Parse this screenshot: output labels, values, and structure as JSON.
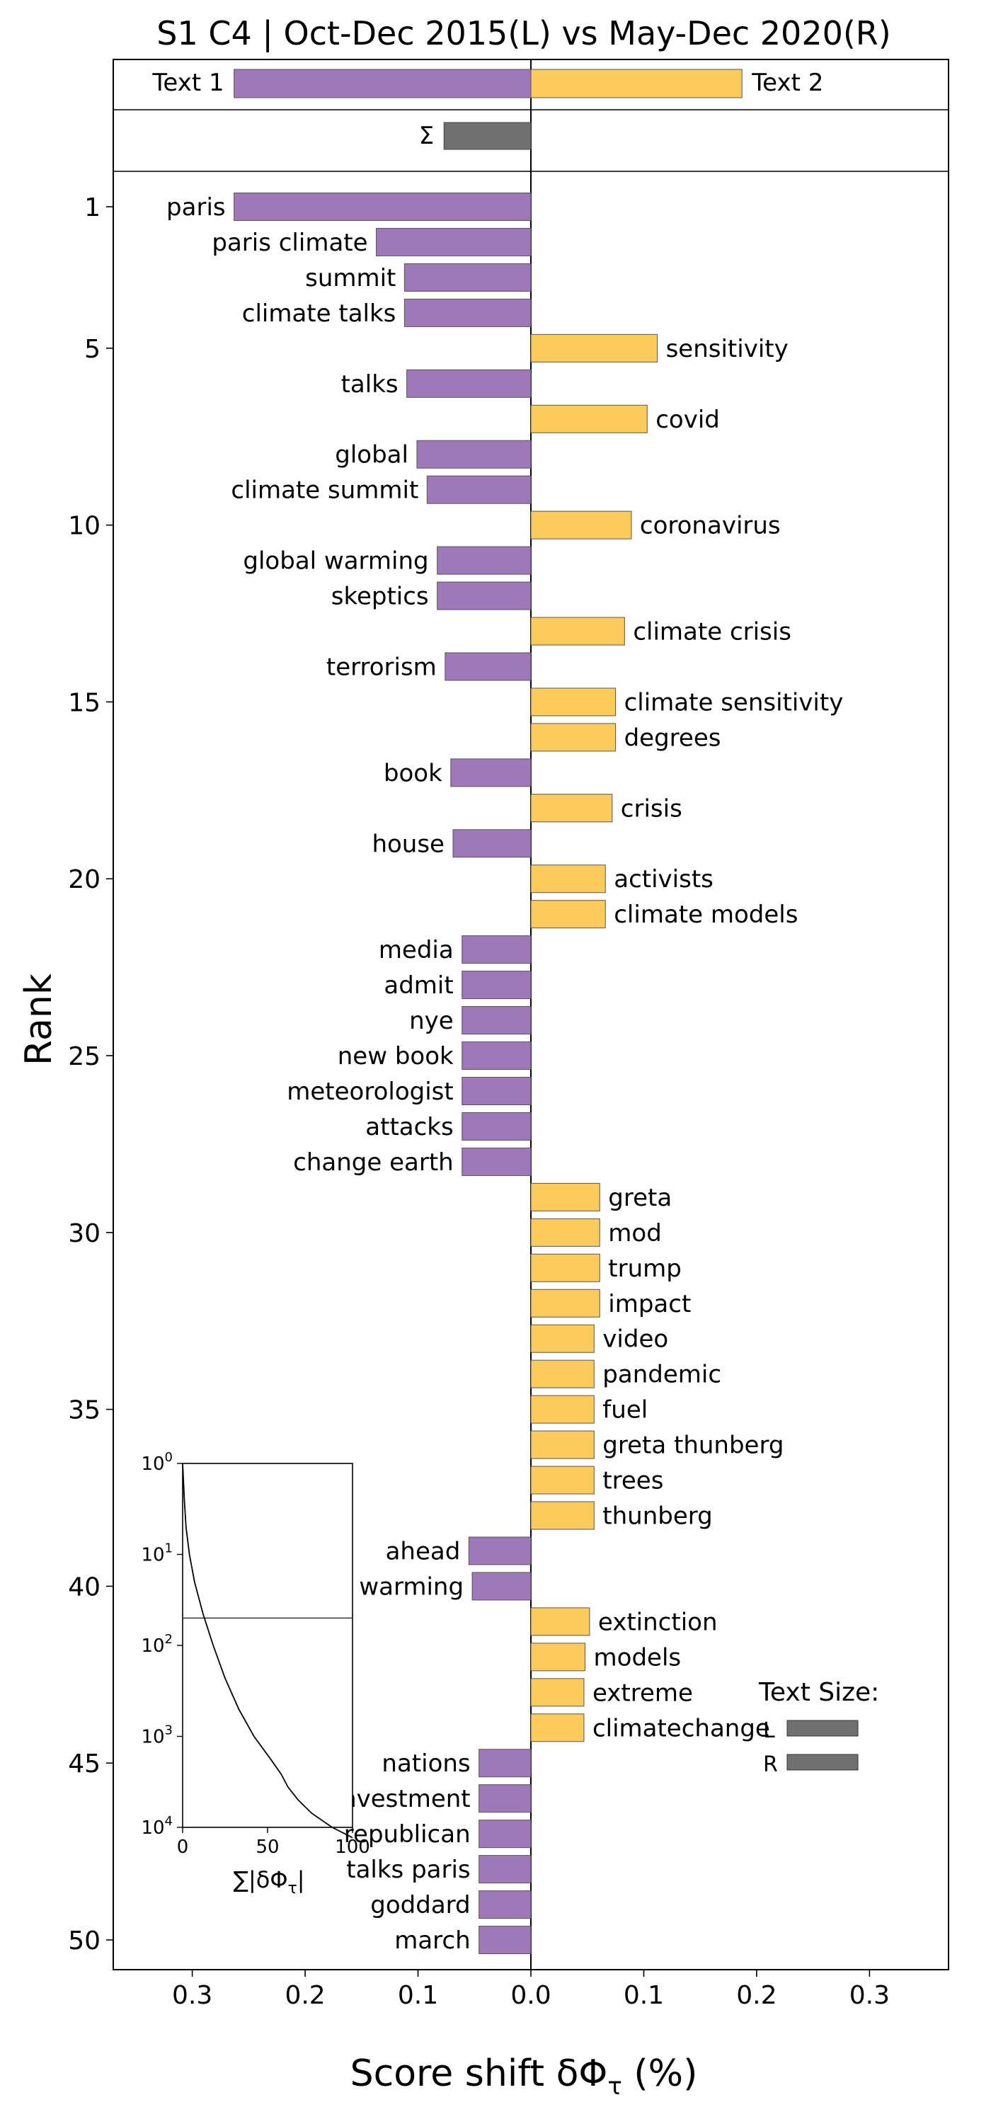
{
  "chart_data": {
    "type": "bar",
    "title": "S1 C4 | Oct-Dec 2015(L) vs May-Dec 2020(R)",
    "xlabel": "Score shift δΦ",
    "xlabel_sub": "τ",
    "xlabel_unit": "(%)",
    "ylabel": "Rank",
    "xlim": [
      -0.37,
      0.37
    ],
    "x_tick_values": [
      -0.3,
      -0.2,
      -0.1,
      0.0,
      0.1,
      0.2,
      0.3
    ],
    "x_tick_labels": [
      "0.3",
      "0.2",
      "0.1",
      "0.0",
      "0.1",
      "0.2",
      "0.3"
    ],
    "y_tick_values": [
      1,
      5,
      10,
      15,
      20,
      25,
      30,
      35,
      40,
      45,
      50
    ],
    "colors": {
      "left": "#9e78b9",
      "right": "#fdca5c",
      "sum": "#707070",
      "edge": "#555555"
    },
    "summary": {
      "text1_label": "Text 1",
      "text2_label": "Text 2",
      "text1_value": -0.263,
      "text2_value": 0.187,
      "sigma_label": "Σ",
      "sigma_value": -0.077
    },
    "words": [
      {
        "rank": 1,
        "label": "paris",
        "value": -0.263
      },
      {
        "rank": 2,
        "label": "paris climate",
        "value": -0.137
      },
      {
        "rank": 3,
        "label": "summit",
        "value": -0.112
      },
      {
        "rank": 4,
        "label": "climate talks",
        "value": -0.112
      },
      {
        "rank": 5,
        "label": "sensitivity",
        "value": 0.112
      },
      {
        "rank": 6,
        "label": "talks",
        "value": -0.11
      },
      {
        "rank": 7,
        "label": "covid",
        "value": 0.103
      },
      {
        "rank": 8,
        "label": "global",
        "value": -0.101
      },
      {
        "rank": 9,
        "label": "climate summit",
        "value": -0.092
      },
      {
        "rank": 10,
        "label": "coronavirus",
        "value": 0.089
      },
      {
        "rank": 11,
        "label": "global warming",
        "value": -0.083
      },
      {
        "rank": 12,
        "label": "skeptics",
        "value": -0.083
      },
      {
        "rank": 13,
        "label": "climate crisis",
        "value": 0.083
      },
      {
        "rank": 14,
        "label": "terrorism",
        "value": -0.076
      },
      {
        "rank": 15,
        "label": "climate sensitivity",
        "value": 0.075
      },
      {
        "rank": 16,
        "label": "degrees",
        "value": 0.075
      },
      {
        "rank": 17,
        "label": "book",
        "value": -0.071
      },
      {
        "rank": 18,
        "label": "crisis",
        "value": 0.072
      },
      {
        "rank": 19,
        "label": "house",
        "value": -0.069
      },
      {
        "rank": 20,
        "label": "activists",
        "value": 0.066
      },
      {
        "rank": 21,
        "label": "climate models",
        "value": 0.066
      },
      {
        "rank": 22,
        "label": "media",
        "value": -0.061
      },
      {
        "rank": 23,
        "label": "admit",
        "value": -0.061
      },
      {
        "rank": 24,
        "label": "nye",
        "value": -0.061
      },
      {
        "rank": 25,
        "label": "new book",
        "value": -0.061
      },
      {
        "rank": 26,
        "label": "meteorologist",
        "value": -0.061
      },
      {
        "rank": 27,
        "label": "attacks",
        "value": -0.061
      },
      {
        "rank": 28,
        "label": "change earth",
        "value": -0.061
      },
      {
        "rank": 29,
        "label": "greta",
        "value": 0.061
      },
      {
        "rank": 30,
        "label": "mod",
        "value": 0.061
      },
      {
        "rank": 31,
        "label": "trump",
        "value": 0.061
      },
      {
        "rank": 32,
        "label": "impact",
        "value": 0.061
      },
      {
        "rank": 33,
        "label": "video",
        "value": 0.056
      },
      {
        "rank": 34,
        "label": "pandemic",
        "value": 0.056
      },
      {
        "rank": 35,
        "label": "fuel",
        "value": 0.056
      },
      {
        "rank": 36,
        "label": "greta thunberg",
        "value": 0.056
      },
      {
        "rank": 37,
        "label": "trees",
        "value": 0.056
      },
      {
        "rank": 38,
        "label": "thunberg",
        "value": 0.056
      },
      {
        "rank": 39,
        "label": "ahead",
        "value": -0.055
      },
      {
        "rank": 40,
        "label": "warming",
        "value": -0.052
      },
      {
        "rank": 41,
        "label": "extinction",
        "value": 0.052
      },
      {
        "rank": 42,
        "label": "models",
        "value": 0.048
      },
      {
        "rank": 43,
        "label": "extreme",
        "value": 0.047
      },
      {
        "rank": 44,
        "label": "climatechange",
        "value": 0.047
      },
      {
        "rank": 45,
        "label": "nations",
        "value": -0.046
      },
      {
        "rank": 46,
        "label": "investment",
        "value": -0.046
      },
      {
        "rank": 47,
        "label": "republican",
        "value": -0.046
      },
      {
        "rank": 48,
        "label": "talks paris",
        "value": -0.046
      },
      {
        "rank": 49,
        "label": "goddard",
        "value": -0.046
      },
      {
        "rank": 50,
        "label": "march",
        "value": -0.046
      }
    ],
    "inset": {
      "type": "line",
      "xlabel": "∑|δΦ",
      "xlabel_sub": "τ",
      "xlabel_end": "|",
      "xlim": [
        0,
        100
      ],
      "x_tick_values": [
        0,
        50,
        100
      ],
      "x_tick_labels": [
        "0",
        "50",
        "100"
      ],
      "y_scale": "log",
      "y_tick_values": [
        1,
        10,
        100,
        1000,
        10000
      ],
      "y_tick_labels": [
        {
          "base": "10",
          "exp": "0"
        },
        {
          "base": "10",
          "exp": "1"
        },
        {
          "base": "10",
          "exp": "2"
        },
        {
          "base": "10",
          "exp": "3"
        },
        {
          "base": "10",
          "exp": "4"
        }
      ],
      "hline_rank": 50,
      "curve": [
        [
          0,
          1
        ],
        [
          1,
          2.5
        ],
        [
          2,
          5
        ],
        [
          4,
          10
        ],
        [
          7,
          20
        ],
        [
          12,
          45
        ],
        [
          18,
          100
        ],
        [
          25,
          230
        ],
        [
          33,
          500
        ],
        [
          42,
          1000
        ],
        [
          52,
          1800
        ],
        [
          58,
          2600
        ],
        [
          62,
          3600
        ],
        [
          68,
          5000
        ],
        [
          76,
          7000
        ],
        [
          88,
          10000
        ],
        [
          100,
          13000
        ]
      ]
    },
    "text_size": {
      "title": "Text Size:",
      "rows": [
        {
          "label": "L",
          "value": 1.0
        },
        {
          "label": "R",
          "value": 1.0
        }
      ]
    }
  }
}
